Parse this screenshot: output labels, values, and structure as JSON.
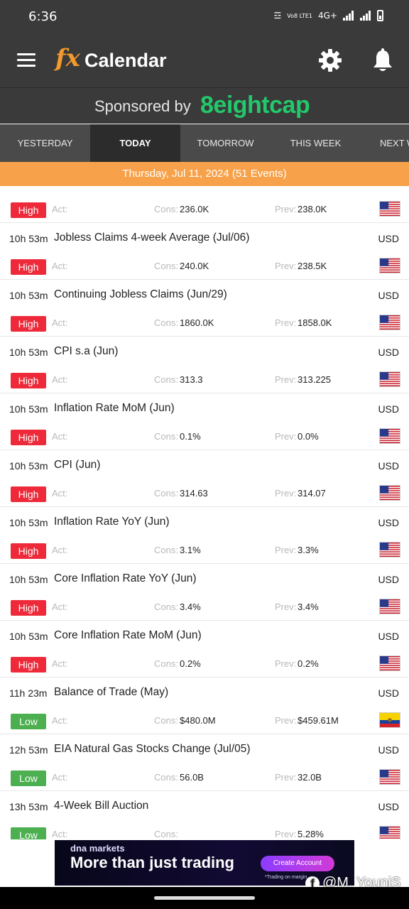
{
  "status_bar": {
    "time": "6:36",
    "network": "4G+",
    "volte": "Vo8 LTE1"
  },
  "header": {
    "logo": "fx",
    "title": "Calendar"
  },
  "sponsor": {
    "text": "Sponsored by",
    "brand": "8eightcap"
  },
  "tabs": [
    {
      "label": "YESTERDAY",
      "active": false
    },
    {
      "label": "TODAY",
      "active": true
    },
    {
      "label": "TOMORROW",
      "active": false
    },
    {
      "label": "THIS WEEK",
      "active": false
    },
    {
      "label": "NEXT WEEK",
      "active": false
    }
  ],
  "date_bar": {
    "text": "Thursday, Jul 11, 2024 (51 Events)"
  },
  "labels": {
    "act": "Act:",
    "cons": "Cons:",
    "prev": "Prev:"
  },
  "events": [
    {
      "time": "",
      "name": "",
      "currency": "",
      "importance": "High",
      "act": "",
      "cons": "236.0K",
      "prev": "238.0K",
      "flag": "us-flag-icon"
    },
    {
      "time": "10h 53m",
      "name": "Jobless Claims 4-week Average (Jul/06)",
      "currency": "USD",
      "importance": "High",
      "act": "",
      "cons": "240.0K",
      "prev": "238.5K",
      "flag": "us-flag-icon"
    },
    {
      "time": "10h 53m",
      "name": "Continuing Jobless Claims (Jun/29)",
      "currency": "USD",
      "importance": "High",
      "act": "",
      "cons": "1860.0K",
      "prev": "1858.0K",
      "flag": "us-flag-icon"
    },
    {
      "time": "10h 53m",
      "name": "CPI s.a (Jun)",
      "currency": "USD",
      "importance": "High",
      "act": "",
      "cons": "313.3",
      "prev": "313.225",
      "flag": "us-flag-icon"
    },
    {
      "time": "10h 53m",
      "name": "Inflation Rate MoM (Jun)",
      "currency": "USD",
      "importance": "High",
      "act": "",
      "cons": "0.1%",
      "prev": "0.0%",
      "flag": "us-flag-icon"
    },
    {
      "time": "10h 53m",
      "name": "CPI (Jun)",
      "currency": "USD",
      "importance": "High",
      "act": "",
      "cons": "314.63",
      "prev": "314.07",
      "flag": "us-flag-icon"
    },
    {
      "time": "10h 53m",
      "name": "Inflation Rate YoY (Jun)",
      "currency": "USD",
      "importance": "High",
      "act": "",
      "cons": "3.1%",
      "prev": "3.3%",
      "flag": "us-flag-icon"
    },
    {
      "time": "10h 53m",
      "name": "Core Inflation Rate YoY (Jun)",
      "currency": "USD",
      "importance": "High",
      "act": "",
      "cons": "3.4%",
      "prev": "3.4%",
      "flag": "us-flag-icon"
    },
    {
      "time": "10h 53m",
      "name": "Core Inflation Rate MoM (Jun)",
      "currency": "USD",
      "importance": "High",
      "act": "",
      "cons": "0.2%",
      "prev": "0.2%",
      "flag": "us-flag-icon"
    },
    {
      "time": "11h 23m",
      "name": "Balance of Trade (May)",
      "currency": "USD",
      "importance": "Low",
      "act": "",
      "cons": "$480.0M",
      "prev": "$459.61M",
      "flag": "ecuador-flag-icon"
    },
    {
      "time": "12h 53m",
      "name": "EIA Natural Gas Stocks Change (Jul/05)",
      "currency": "USD",
      "importance": "Low",
      "act": "",
      "cons": "56.0B",
      "prev": "32.0B",
      "flag": "us-flag-icon"
    },
    {
      "time": "13h 53m",
      "name": "4-Week Bill Auction",
      "currency": "USD",
      "importance": "Low",
      "act": "",
      "cons": "",
      "prev": "5.28%",
      "flag": "us-flag-icon"
    }
  ],
  "ad": {
    "brand": "dna markets",
    "tagline": "More than just trading",
    "button": "Create Account",
    "note": "*Trading on margin..."
  },
  "watermark": "@M. YouniS",
  "colors": {
    "high": "#ee2a3a",
    "low": "#4caf50",
    "accent": "#f7a24a",
    "header_bg": "#3a3a3a"
  }
}
